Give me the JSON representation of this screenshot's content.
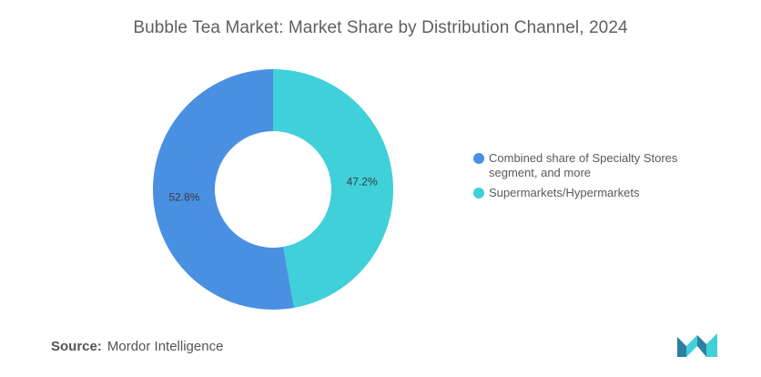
{
  "chart_data": {
    "type": "pie",
    "title": "Bubble Tea Market: Market Share by Distribution Channel, 2024",
    "categories": [
      "Combined share of Specialty Stores segment, and more",
      "Supermarkets/Hypermarkets"
    ],
    "values": [
      52.8,
      47.2
    ],
    "value_labels": [
      "52.8%",
      "47.2%"
    ],
    "colors": [
      "#4a90e2",
      "#3fd0d9"
    ],
    "donut": true,
    "legend_position": "right"
  },
  "source": {
    "label": "Source:",
    "text": "Mordor Intelligence"
  },
  "logo": {
    "icon": "mordor-intelligence-logo",
    "colors": [
      "#2f7fa0",
      "#3fd0d9"
    ]
  }
}
